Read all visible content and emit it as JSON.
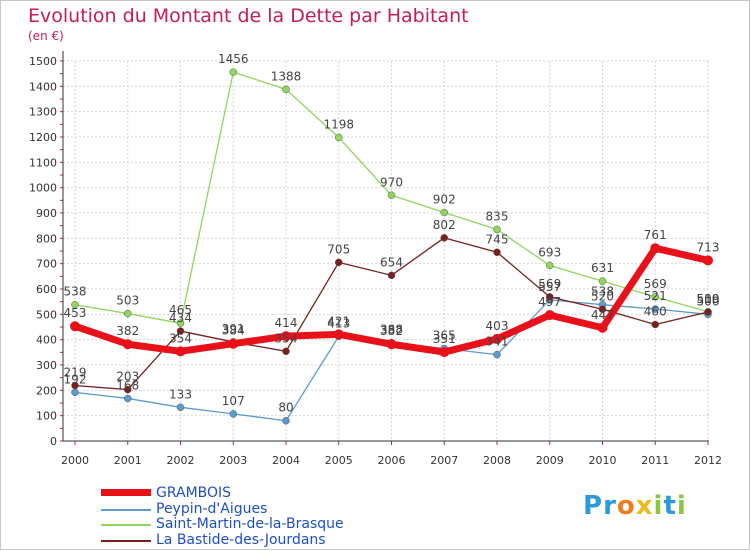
{
  "title": "Evolution du Montant de la Dette par Habitant",
  "unit_label": "(en €)",
  "logo": {
    "letters": [
      "P",
      "r",
      "o",
      "x",
      "i",
      "t",
      "i"
    ],
    "colors": [
      "#2a9ad8",
      "#2a9ad8",
      "#f07c1d",
      "#f0b91d",
      "#8cc63f",
      "#2a9ad8",
      "#8cc63f"
    ]
  },
  "chart_data": {
    "type": "line",
    "x": [
      "2000",
      "2001",
      "2002",
      "2003",
      "2004",
      "2005",
      "2006",
      "2007",
      "2008",
      "2009",
      "2010",
      "2011",
      "2012"
    ],
    "ylim": [
      0,
      1500
    ],
    "yticks": [
      0,
      100,
      200,
      300,
      400,
      500,
      600,
      700,
      800,
      900,
      1000,
      1100,
      1200,
      1300,
      1400,
      1500
    ],
    "grid": true,
    "legend_position": "bottom-left",
    "series": [
      {
        "name": "GRAMBOIS",
        "color": "#e8111a",
        "values": [
          453,
          382,
          354,
          384,
          414,
          421,
          382,
          351,
          403,
          497,
          447,
          761,
          713
        ],
        "labels": [
          "453",
          "382",
          "354",
          "384",
          "414",
          "421",
          "382",
          "351",
          "403",
          "497",
          "447",
          "761",
          "713"
        ]
      },
      {
        "name": "Peypin-d'Aigues",
        "color": "#5e9bd1",
        "values": [
          192,
          168,
          133,
          107,
          80,
          413,
          388,
          365,
          341,
          557,
          538,
          521,
          500
        ],
        "labels": [
          "192",
          "168",
          "133",
          "107",
          "80",
          "413",
          "388",
          "365",
          "341",
          "557",
          "538",
          "521",
          "500"
        ]
      },
      {
        "name": "Saint-Martin-de-la-Brasque",
        "color": "#8ed85c",
        "values": [
          538,
          503,
          465,
          1456,
          1388,
          1198,
          970,
          902,
          835,
          693,
          631,
          569,
          510
        ],
        "labels": [
          "538",
          "503",
          "465",
          "1456",
          "1388",
          "1198",
          "970",
          "902",
          "835",
          "693",
          "631",
          "569",
          "510"
        ]
      },
      {
        "name": "La Bastide-des-Jourdans",
        "color": "#7a1f1f",
        "values": [
          219,
          203,
          434,
          391,
          354,
          705,
          654,
          802,
          745,
          569,
          520,
          460,
          509
        ],
        "labels": [
          "219",
          "203",
          "434",
          "391",
          "354",
          "705",
          "654",
          "802",
          "745",
          "569",
          "520",
          "460",
          "509"
        ]
      }
    ]
  }
}
